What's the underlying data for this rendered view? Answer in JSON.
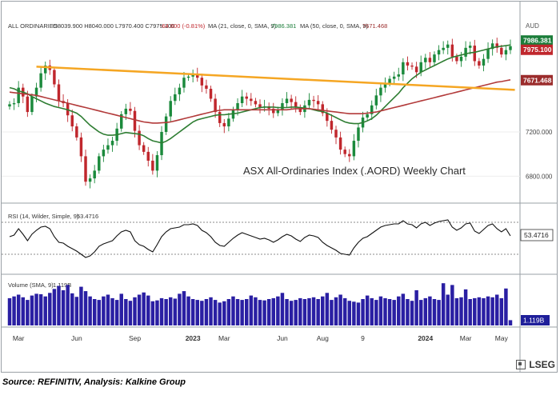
{
  "header": {
    "symbol": "ALL ORDINARIES",
    "ohlc": "O8039.900  H8040.000  L7970.400  C7975.100",
    "change": "-64.800 (-0.81%)",
    "ma21_label": "MA (21, close, 0, SMA, 9)",
    "ma21_value": "7986.381",
    "ma50_label": "MA (50, close, 0, SMA, 9)",
    "ma50_value": "7671.468",
    "currency": "AUD"
  },
  "source_note": "Source: REFINITIV, Analysis: Kalkine Group",
  "brand": "LSEG",
  "chart_data": [
    {
      "type": "candlestick",
      "title": "ASX All-Ordinaries Index (.AORD) Weekly Chart",
      "yticks": [
        6800,
        7200
      ],
      "ytick_labels": [
        "6800.000",
        "7200.000"
      ],
      "ylim": [
        6600,
        8060
      ],
      "price_tags": [
        {
          "label": "7986.381",
          "value": 7986.381,
          "color": "#1b7d3a"
        },
        {
          "label": "7975.100",
          "value": 7975.1,
          "color": "#c0272d"
        },
        {
          "label": "7671.468",
          "value": 7671.468,
          "color": "#9b2c2c"
        }
      ],
      "x_axis_labels": [
        {
          "label": "Mar",
          "week": 2
        },
        {
          "label": "Jun",
          "week": 15
        },
        {
          "label": "Sep",
          "week": 28
        },
        {
          "label": "2023",
          "week": 41
        },
        {
          "label": "Mar",
          "week": 48
        },
        {
          "label": "Jun",
          "week": 61
        },
        {
          "label": "Aug",
          "week": 70
        },
        {
          "label": "9",
          "week": 79
        },
        {
          "label": "2024",
          "week": 93
        },
        {
          "label": "Mar",
          "week": 102
        },
        {
          "label": "May",
          "week": 110
        }
      ],
      "close": [
        7450,
        7460,
        7600,
        7520,
        7380,
        7520,
        7600,
        7730,
        7800,
        7760,
        7630,
        7480,
        7460,
        7350,
        7250,
        7150,
        6980,
        6750,
        6780,
        6850,
        6980,
        7040,
        7080,
        7120,
        7230,
        7360,
        7410,
        7390,
        7210,
        7080,
        7020,
        6940,
        6850,
        6990,
        7200,
        7340,
        7480,
        7540,
        7600,
        7690,
        7700,
        7720,
        7690,
        7620,
        7590,
        7500,
        7380,
        7280,
        7250,
        7320,
        7400,
        7460,
        7520,
        7500,
        7480,
        7450,
        7420,
        7430,
        7410,
        7370,
        7400,
        7460,
        7500,
        7470,
        7420,
        7380,
        7440,
        7490,
        7480,
        7450,
        7370,
        7300,
        7220,
        7150,
        7040,
        7000,
        6980,
        7120,
        7240,
        7330,
        7360,
        7440,
        7530,
        7600,
        7640,
        7680,
        7700,
        7720,
        7830,
        7800,
        7790,
        7740,
        7830,
        7870,
        7830,
        7900,
        7940,
        7960,
        7990,
        7880,
        7840,
        7880,
        7960,
        7980,
        7840,
        7800,
        7860,
        7950,
        8000,
        7960,
        7900,
        7940,
        7975
      ],
      "series": [
        {
          "name": "MA (21, close, 0, SMA, 9)",
          "color": "#2e7d32",
          "values": [
            7600,
            7590,
            7570,
            7560,
            7545,
            7520,
            7500,
            7480,
            7460,
            7445,
            7430,
            7420,
            7410,
            7400,
            7385,
            7370,
            7340,
            7300,
            7260,
            7230,
            7200,
            7180,
            7170,
            7170,
            7175,
            7185,
            7195,
            7190,
            7185,
            7180,
            7165,
            7140,
            7120,
            7110,
            7100,
            7115,
            7140,
            7170,
            7200,
            7230,
            7260,
            7290,
            7310,
            7320,
            7330,
            7340,
            7350,
            7355,
            7355,
            7360,
            7365,
            7370,
            7380,
            7390,
            7400,
            7410,
            7420,
            7425,
            7425,
            7425,
            7420,
            7420,
            7420,
            7425,
            7425,
            7420,
            7415,
            7410,
            7400,
            7390,
            7385,
            7370,
            7350,
            7330,
            7310,
            7290,
            7280,
            7275,
            7275,
            7285,
            7300,
            7320,
            7350,
            7390,
            7430,
            7470,
            7510,
            7550,
            7600,
            7640,
            7680,
            7710,
            7740,
            7760,
            7780,
            7800,
            7820,
            7840,
            7860,
            7875,
            7885,
            7895,
            7905,
            7915,
            7920,
            7930,
            7940,
            7950,
            7960,
            7970,
            7975,
            7980,
            7986
          ]
        },
        {
          "name": "MA (50, close, 0, SMA, 9)",
          "color": "#b23a3a",
          "values": [
            7560,
            7555,
            7550,
            7545,
            7540,
            7535,
            7530,
            7520,
            7510,
            7500,
            7490,
            7480,
            7470,
            7460,
            7450,
            7440,
            7430,
            7420,
            7410,
            7400,
            7390,
            7380,
            7370,
            7360,
            7350,
            7340,
            7330,
            7320,
            7310,
            7300,
            7290,
            7285,
            7280,
            7280,
            7282,
            7285,
            7290,
            7300,
            7310,
            7320,
            7330,
            7340,
            7350,
            7360,
            7370,
            7380,
            7390,
            7395,
            7400,
            7400,
            7400,
            7400,
            7400,
            7400,
            7400,
            7400,
            7400,
            7400,
            7400,
            7400,
            7400,
            7400,
            7400,
            7405,
            7410,
            7410,
            7410,
            7410,
            7405,
            7400,
            7395,
            7390,
            7385,
            7380,
            7375,
            7370,
            7365,
            7365,
            7365,
            7365,
            7370,
            7375,
            7380,
            7390,
            7400,
            7410,
            7420,
            7430,
            7440,
            7450,
            7460,
            7470,
            7480,
            7490,
            7500,
            7510,
            7520,
            7530,
            7540,
            7550,
            7560,
            7570,
            7580,
            7590,
            7600,
            7610,
            7620,
            7630,
            7640,
            7650,
            7655,
            7663,
            7671
          ]
        }
      ],
      "trendline": {
        "color": "#f5a623",
        "from": {
          "week": 6,
          "value": 7790
        },
        "to": {
          "week": 113,
          "value": 7580
        }
      }
    },
    {
      "type": "line",
      "title": "RSI (14, Wilder, Simple, 9)",
      "value_label": "53.4716",
      "ylim": [
        20,
        80
      ],
      "reference_levels": [
        70,
        30
      ],
      "values": [
        52,
        54,
        62,
        55,
        47,
        55,
        60,
        64,
        65,
        62,
        52,
        45,
        44,
        40,
        37,
        34,
        30,
        26,
        28,
        33,
        40,
        43,
        45,
        47,
        53,
        58,
        60,
        58,
        47,
        42,
        40,
        36,
        33,
        42,
        52,
        58,
        62,
        63,
        64,
        67,
        67,
        68,
        66,
        60,
        57,
        52,
        45,
        41,
        40,
        45,
        50,
        54,
        57,
        55,
        53,
        51,
        49,
        50,
        48,
        45,
        48,
        52,
        55,
        53,
        49,
        46,
        51,
        54,
        53,
        51,
        45,
        41,
        38,
        35,
        31,
        30,
        29,
        38,
        45,
        50,
        52,
        56,
        60,
        64,
        66,
        67,
        68,
        68,
        72,
        68,
        67,
        63,
        68,
        70,
        66,
        69,
        71,
        72,
        73,
        64,
        60,
        63,
        68,
        69,
        59,
        56,
        61,
        66,
        68,
        62,
        58,
        62,
        53
      ]
    },
    {
      "type": "bar",
      "title": "Volume (SMA, 9)",
      "value_label": "1.119B",
      "ylim": [
        0,
        1
      ],
      "values": [
        0.62,
        0.66,
        0.7,
        0.64,
        0.58,
        0.68,
        0.72,
        0.71,
        0.66,
        0.74,
        0.83,
        0.9,
        0.8,
        0.92,
        0.73,
        0.65,
        0.88,
        0.78,
        0.66,
        0.6,
        0.58,
        0.66,
        0.7,
        0.62,
        0.58,
        0.72,
        0.6,
        0.56,
        0.64,
        0.7,
        0.75,
        0.68,
        0.55,
        0.57,
        0.62,
        0.6,
        0.64,
        0.61,
        0.72,
        0.78,
        0.66,
        0.6,
        0.58,
        0.56,
        0.6,
        0.64,
        0.58,
        0.52,
        0.55,
        0.6,
        0.66,
        0.6,
        0.58,
        0.6,
        0.68,
        0.64,
        0.58,
        0.57,
        0.6,
        0.62,
        0.66,
        0.74,
        0.6,
        0.56,
        0.58,
        0.62,
        0.6,
        0.62,
        0.64,
        0.6,
        0.66,
        0.74,
        0.58,
        0.64,
        0.7,
        0.62,
        0.56,
        0.54,
        0.52,
        0.6,
        0.68,
        0.62,
        0.58,
        0.66,
        0.62,
        0.6,
        0.58,
        0.66,
        0.72,
        0.6,
        0.56,
        0.8,
        0.58,
        0.62,
        0.66,
        0.6,
        0.58,
        0.96,
        0.7,
        0.92,
        0.62,
        0.64,
        0.82,
        0.6,
        0.62,
        0.64,
        0.62,
        0.66,
        0.64,
        0.7,
        0.62,
        0.84,
        0.12
      ]
    }
  ]
}
